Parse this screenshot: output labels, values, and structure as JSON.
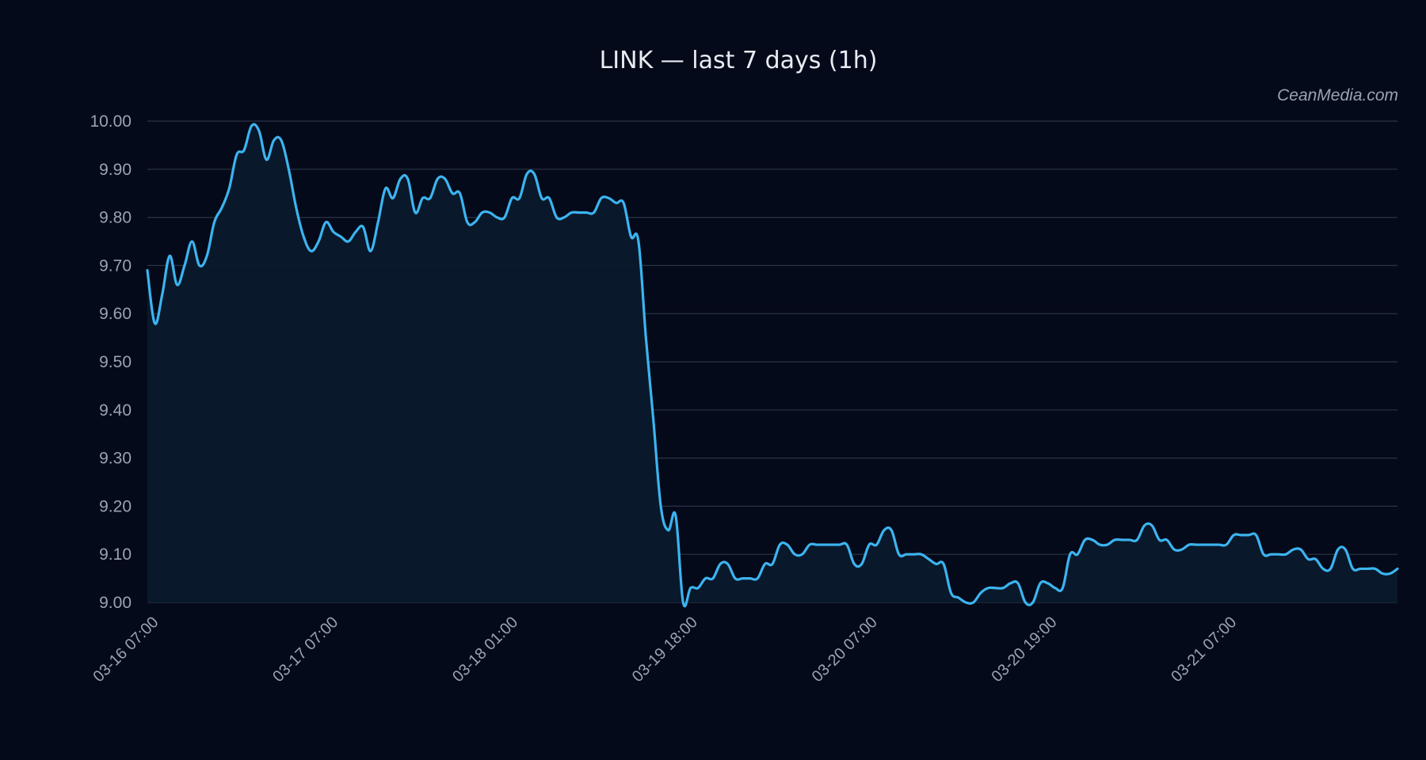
{
  "watermark": "CeanMedia.com",
  "colors": {
    "background": "#050a1a",
    "line": "#3cb4f0",
    "area_fill": "#0a1a2c",
    "grid": "#2a3446",
    "text": "#e8ecf2",
    "tick_text": "#9aa3b2"
  },
  "chart_data": {
    "type": "area",
    "title": "LINK — last 7 days (1h)",
    "xlabel": "",
    "ylabel": "",
    "grid": "horizontal",
    "ylim": [
      9.0,
      10.0
    ],
    "y_ticks": [
      "10.00",
      "9.90",
      "9.80",
      "9.70",
      "9.60",
      "9.50",
      "9.40",
      "9.30",
      "9.20",
      "9.10",
      "9.00"
    ],
    "x_ticks": [
      "03-16 07:00",
      "03-17 07:00",
      "03-18 01:00",
      "03-19 18:00",
      "03-20 07:00",
      "03-20 19:00",
      "03-21 07:00"
    ],
    "series": [
      {
        "x_start": "03-16 07:00",
        "interval": "1h",
        "values": [
          9.69,
          9.58,
          9.64,
          9.72,
          9.66,
          9.7,
          9.75,
          9.7,
          9.72,
          9.79,
          9.82,
          9.86,
          9.93,
          9.94,
          9.99,
          9.98,
          9.92,
          9.96,
          9.96,
          9.9,
          9.82,
          9.76,
          9.73,
          9.75,
          9.79,
          9.77,
          9.76,
          9.75,
          9.77,
          9.78,
          9.73,
          9.79,
          9.86,
          9.84,
          9.88,
          9.88,
          9.81,
          9.84,
          9.84,
          9.88,
          9.88,
          9.85,
          9.85,
          9.79,
          9.79,
          9.81,
          9.81,
          9.8,
          9.8,
          9.84,
          9.84,
          9.89,
          9.89,
          9.84,
          9.84,
          9.8,
          9.8,
          9.81,
          9.81,
          9.81,
          9.81,
          9.84,
          9.84,
          9.83,
          9.83,
          9.76,
          9.75,
          9.55,
          9.38,
          9.2,
          9.15,
          9.18,
          9.0,
          9.03,
          9.03,
          9.05,
          9.05,
          9.08,
          9.08,
          9.05,
          9.05,
          9.05,
          9.05,
          9.08,
          9.08,
          9.12,
          9.12,
          9.1,
          9.1,
          9.12,
          9.12,
          9.12,
          9.12,
          9.12,
          9.12,
          9.08,
          9.08,
          9.12,
          9.12,
          9.15,
          9.15,
          9.1,
          9.1,
          9.1,
          9.1,
          9.09,
          9.08,
          9.08,
          9.02,
          9.01,
          9.0,
          9.0,
          9.02,
          9.03,
          9.03,
          9.03,
          9.04,
          9.04,
          9.0,
          9.0,
          9.04,
          9.04,
          9.03,
          9.03,
          9.1,
          9.1,
          9.13,
          9.13,
          9.12,
          9.12,
          9.13,
          9.13,
          9.13,
          9.13,
          9.16,
          9.16,
          9.13,
          9.13,
          9.11,
          9.11,
          9.12,
          9.12,
          9.12,
          9.12,
          9.12,
          9.12,
          9.14,
          9.14,
          9.14,
          9.14,
          9.1,
          9.1,
          9.1,
          9.1,
          9.11,
          9.11,
          9.09,
          9.09,
          9.07,
          9.07,
          9.11,
          9.11,
          9.07,
          9.07,
          9.07,
          9.07,
          9.06,
          9.06,
          9.07
        ]
      }
    ]
  }
}
